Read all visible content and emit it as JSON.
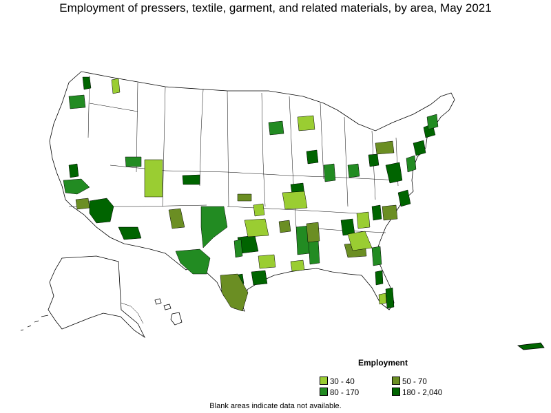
{
  "title": "Employment of pressers, textile, garment, and related materials, by area, May 2021",
  "legend": {
    "title": "Employment",
    "items": [
      {
        "label": "30 - 40",
        "color": "#9acd32"
      },
      {
        "label": "50 - 70",
        "color": "#6b8e23"
      },
      {
        "label": "80 - 170",
        "color": "#228b22"
      },
      {
        "label": "180 - 2,040",
        "color": "#006400"
      }
    ]
  },
  "note": "Blank areas indicate data not available."
}
